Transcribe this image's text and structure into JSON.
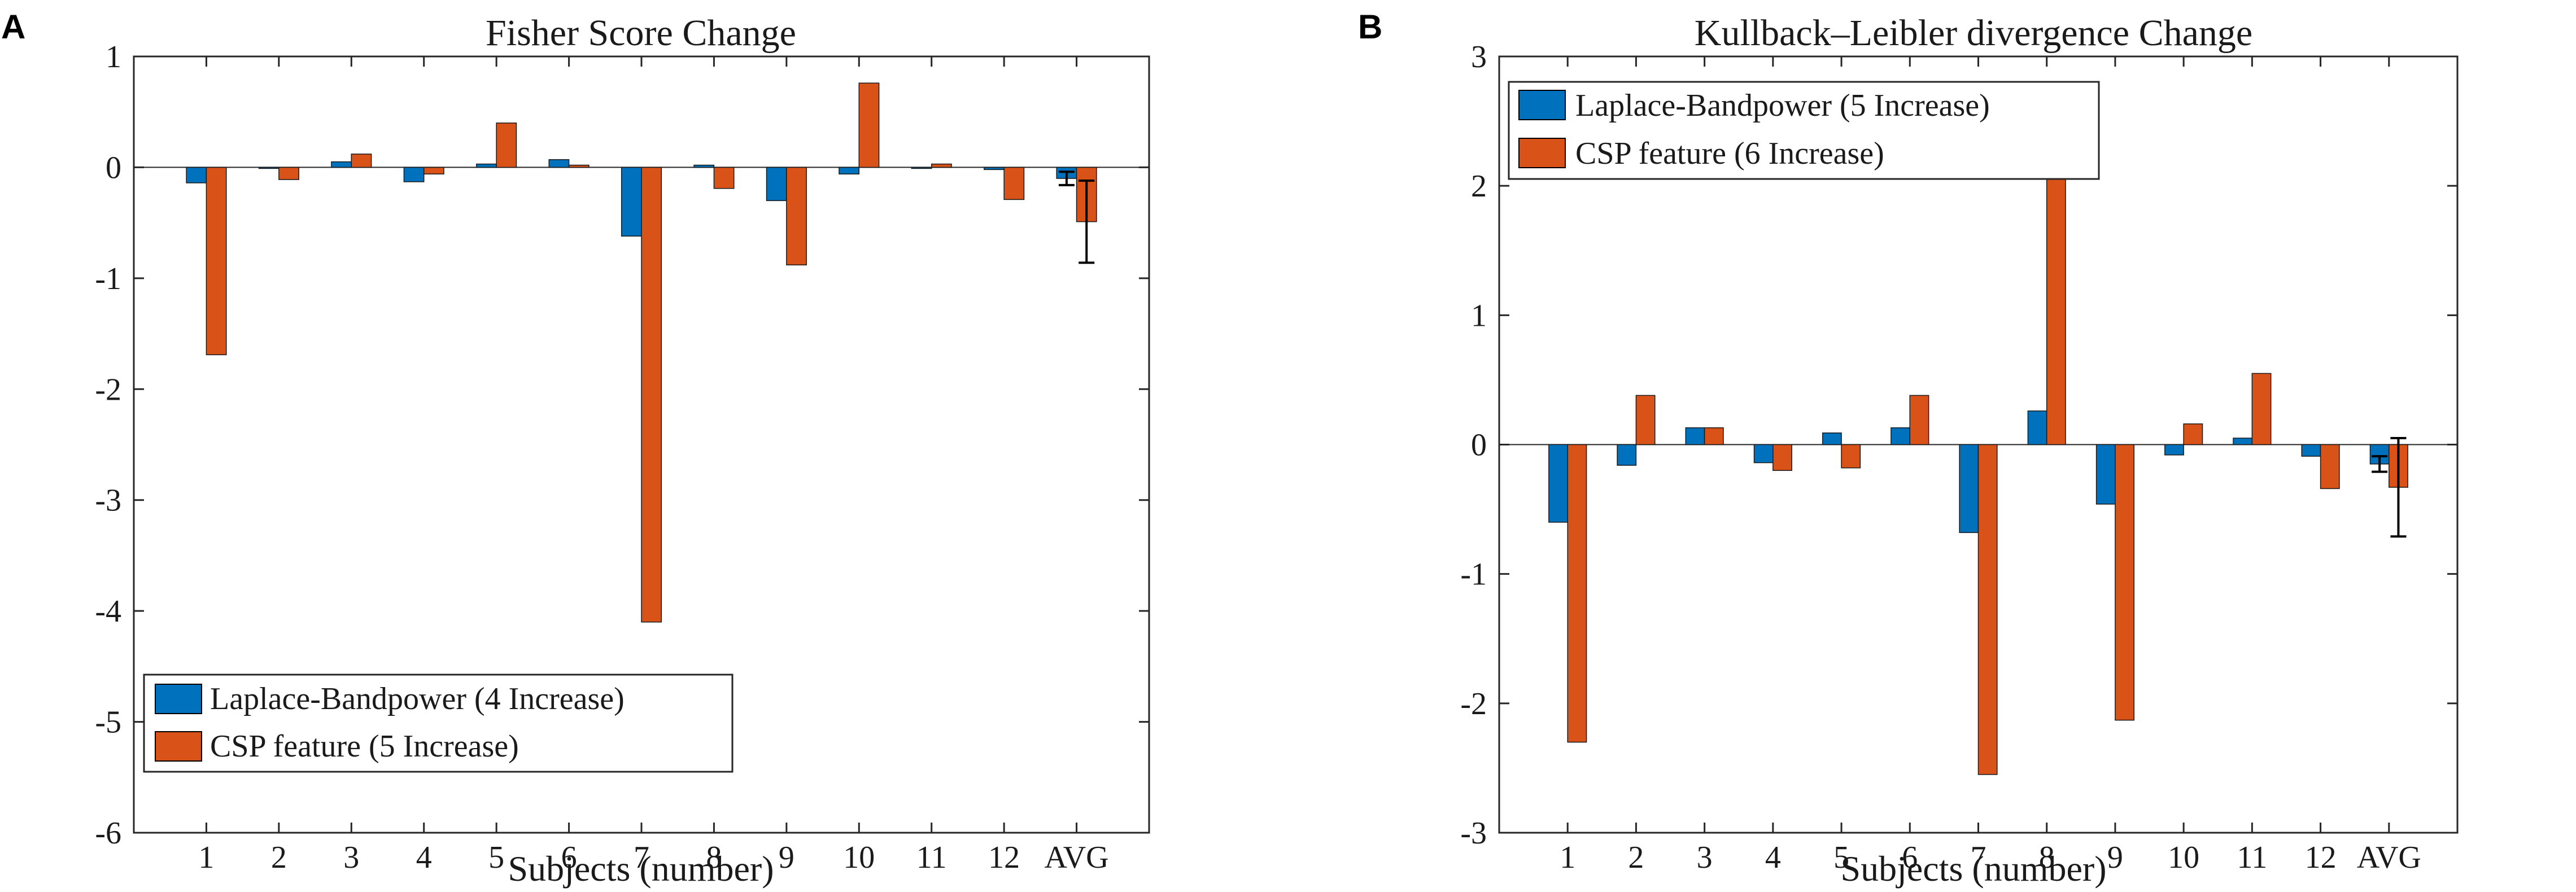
{
  "colors": {
    "laplace": "#0072BD",
    "csp": "#D95319",
    "axis": "#262626",
    "errorbar": "#000000"
  },
  "chart_data": [
    {
      "panel": "A",
      "type": "bar",
      "title": "Fisher Score Change",
      "xlabel": "Subjects (number)",
      "ylabel": "",
      "ylim": [
        -6,
        1
      ],
      "yticks": [
        1,
        0,
        -1,
        -2,
        -3,
        -4,
        -5,
        -6
      ],
      "categories": [
        "1",
        "2",
        "3",
        "4",
        "5",
        "6",
        "7",
        "8",
        "9",
        "10",
        "11",
        "12",
        "AVG"
      ],
      "legend_position": "bottom-left",
      "series": [
        {
          "name": "Laplace-Bandpower (4 Increase)",
          "color": "#0072BD",
          "values": [
            -0.14,
            -0.01,
            0.05,
            -0.13,
            0.03,
            0.07,
            -0.62,
            0.02,
            -0.3,
            -0.06,
            -0.01,
            -0.02,
            -0.1
          ],
          "errors": [
            null,
            null,
            null,
            null,
            null,
            null,
            null,
            null,
            null,
            null,
            null,
            null,
            0.06
          ]
        },
        {
          "name": "CSP feature (5 Increase)",
          "color": "#D95319",
          "values": [
            -1.69,
            -0.11,
            0.12,
            -0.06,
            0.4,
            0.02,
            -4.1,
            -0.19,
            -0.88,
            0.76,
            0.03,
            -0.29,
            -0.49
          ],
          "errors": [
            null,
            null,
            null,
            null,
            null,
            null,
            null,
            null,
            null,
            null,
            null,
            null,
            0.37
          ]
        }
      ]
    },
    {
      "panel": "B",
      "type": "bar",
      "title": "Kullback–Leibler divergence Change",
      "xlabel": "Subjects (number)",
      "ylabel": "",
      "ylim": [
        -3,
        3
      ],
      "yticks": [
        3,
        2,
        1,
        0,
        -1,
        -2,
        -3
      ],
      "categories": [
        "1",
        "2",
        "3",
        "4",
        "5",
        "6",
        "7",
        "8",
        "9",
        "10",
        "11",
        "12",
        "AVG"
      ],
      "legend_position": "top-left",
      "series": [
        {
          "name": "Laplace-Bandpower (5 Increase)",
          "color": "#0072BD",
          "values": [
            -0.6,
            -0.16,
            0.13,
            -0.14,
            0.09,
            0.13,
            -0.68,
            0.26,
            -0.46,
            -0.08,
            0.05,
            -0.09,
            -0.15
          ],
          "errors": [
            null,
            null,
            null,
            null,
            null,
            null,
            null,
            null,
            null,
            null,
            null,
            null,
            0.06
          ]
        },
        {
          "name": "CSP feature (6 Increase)",
          "color": "#D95319",
          "values": [
            -2.3,
            0.38,
            0.13,
            -0.2,
            -0.18,
            0.38,
            -2.55,
            2.1,
            -2.13,
            0.16,
            0.55,
            -0.34,
            -0.33
          ],
          "errors": [
            null,
            null,
            null,
            null,
            null,
            null,
            null,
            null,
            null,
            null,
            null,
            null,
            0.38
          ]
        }
      ]
    }
  ]
}
